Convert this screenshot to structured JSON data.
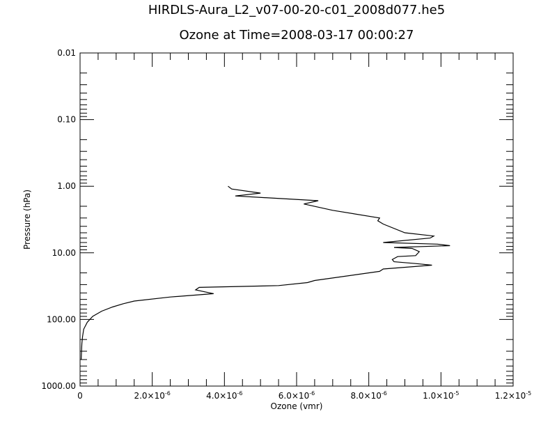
{
  "chart_data": {
    "type": "line",
    "title": "HIRDLS-Aura_L2_v07-00-20-c01_2008d077.he5",
    "subtitle": "Ozone at Time=2008-03-17 00:00:27",
    "xlabel": "Ozone (vmr)",
    "ylabel": "Pressure (hPa)",
    "xlim": [
      0,
      1.2e-05
    ],
    "ylim": [
      0.01,
      1000
    ],
    "yscale": "log",
    "yaxis_inverted": true,
    "grid": false,
    "x_ticks": [
      {
        "value": 0,
        "label": "0"
      },
      {
        "value": 2e-06,
        "label": "2.0×10",
        "exp": "-6"
      },
      {
        "value": 4e-06,
        "label": "4.0×10",
        "exp": "-6"
      },
      {
        "value": 6e-06,
        "label": "6.0×10",
        "exp": "-6"
      },
      {
        "value": 8e-06,
        "label": "8.0×10",
        "exp": "-6"
      },
      {
        "value": 1e-05,
        "label": "1.0×10",
        "exp": "-5"
      },
      {
        "value": 1.2e-05,
        "label": "1.2×10",
        "exp": "-5"
      }
    ],
    "y_ticks": [
      {
        "value": 0.01,
        "label": "0.01"
      },
      {
        "value": 0.1,
        "label": "0.10"
      },
      {
        "value": 1,
        "label": "1.00"
      },
      {
        "value": 10,
        "label": "10.00"
      },
      {
        "value": 100,
        "label": "100.00"
      },
      {
        "value": 1000,
        "label": "1000.00"
      }
    ],
    "series": [
      {
        "x": [
          4.1e-06,
          4.2e-06,
          5e-06,
          4.3e-06,
          6.6e-06,
          6.2e-06,
          7e-06,
          8.3e-06,
          8.25e-06,
          8.4e-06,
          9e-06,
          9.8e-06,
          9.7e-06,
          8.4e-06,
          9.9e-06,
          1.025e-05,
          8.7e-06,
          9.2e-06,
          9.4e-06,
          9.3e-06,
          8.8e-06,
          8.65e-06,
          8.7e-06,
          9.3e-06,
          9.75e-06,
          8.4e-06,
          8.3e-06,
          6.5e-06,
          6.3e-06,
          5.5e-06,
          3.3e-06,
          3.2e-06,
          3.7e-06,
          2.5e-06,
          1.5e-06,
          1.2e-06,
          9e-07,
          6e-07,
          3.5e-07,
          2e-07,
          1e-07,
          7e-08,
          5e-08,
          4e-08,
          3e-08
        ],
        "y": [
          1.0,
          1.1,
          1.27,
          1.4,
          1.65,
          1.85,
          2.3,
          3.0,
          3.3,
          3.7,
          5.0,
          5.6,
          6.0,
          7.0,
          7.4,
          7.8,
          8.3,
          8.6,
          9.6,
          11.0,
          11.4,
          12.6,
          13.6,
          14.5,
          15.3,
          17.5,
          19.0,
          26.0,
          28.0,
          31.0,
          33.0,
          36.0,
          41.0,
          46.0,
          53.0,
          58.0,
          65.0,
          75.0,
          90.0,
          110.0,
          140.0,
          180.0,
          230.0,
          300.0,
          400.0
        ]
      }
    ]
  }
}
